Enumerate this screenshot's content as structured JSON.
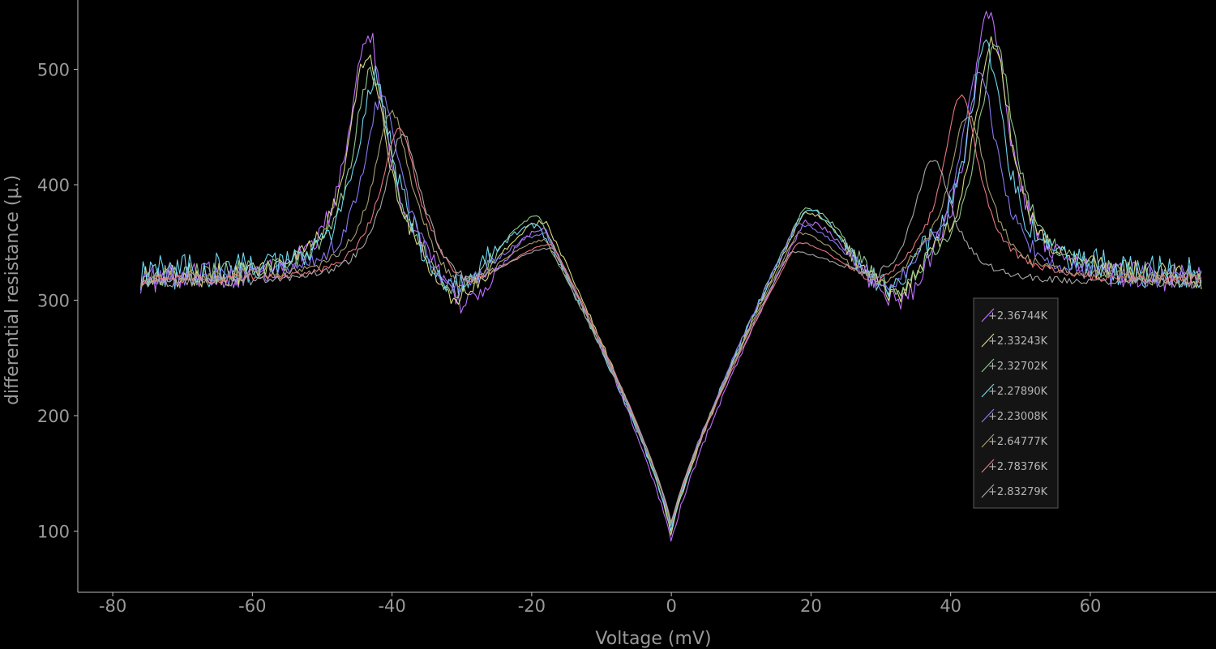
{
  "chart_data": {
    "type": "line",
    "xlabel": "Voltage (mV)",
    "ylabel": "differential resistance (μ.)",
    "xlim": [
      -85,
      78
    ],
    "ylim": [
      47,
      560
    ],
    "x_ticks": [
      -80,
      -60,
      -40,
      -20,
      0,
      20,
      40,
      60
    ],
    "y_ticks": [
      100,
      200,
      300,
      400,
      500
    ],
    "legend_position": "right",
    "x_range": [
      -76,
      76
    ],
    "series": [
      {
        "name": "+2.36744K",
        "color": "#c070ff",
        "baseline": 316,
        "left_peak": [
          -43.5,
          533
        ],
        "left_dip": [
          -31,
          296
        ],
        "left_shoulder": [
          -18,
          362
        ],
        "right_shoulder": [
          19,
          368
        ],
        "right_dip": [
          34,
          298
        ],
        "right_peak": [
          45.5,
          550
        ],
        "min": 89,
        "noise": 9
      },
      {
        "name": "+2.33243K",
        "color": "#d8d880",
        "baseline": 318,
        "left_peak": [
          -43.5,
          516
        ],
        "left_dip": [
          -32,
          302
        ],
        "left_shoulder": [
          -18,
          368
        ],
        "right_shoulder": [
          19,
          376
        ],
        "right_dip": [
          33,
          304
        ],
        "right_peak": [
          46,
          525
        ],
        "min": 96,
        "noise": 8
      },
      {
        "name": "+2.32702K",
        "color": "#90c890",
        "baseline": 320,
        "left_peak": [
          -43,
          498
        ],
        "left_dip": [
          -32,
          306
        ],
        "left_shoulder": [
          -19,
          372
        ],
        "right_shoulder": [
          19,
          380
        ],
        "right_dip": [
          33,
          308
        ],
        "right_peak": [
          46.5,
          520
        ],
        "min": 98,
        "noise": 7
      },
      {
        "name": "+2.27890K",
        "color": "#6fd8f0",
        "baseline": 322,
        "left_peak": [
          -42.5,
          492
        ],
        "left_dip": [
          -33,
          310
        ],
        "left_shoulder": [
          -19,
          365
        ],
        "right_shoulder": [
          19,
          378
        ],
        "right_dip": [
          32,
          312
        ],
        "right_peak": [
          45,
          520
        ],
        "min": 100,
        "noise": 11
      },
      {
        "name": "+2.23008K",
        "color": "#8a7af0",
        "baseline": 317,
        "left_peak": [
          -41.5,
          476
        ],
        "left_dip": [
          -32,
          312
        ],
        "left_shoulder": [
          -18,
          358
        ],
        "right_shoulder": [
          18,
          366
        ],
        "right_dip": [
          32,
          314
        ],
        "right_peak": [
          44,
          500
        ],
        "min": 102,
        "noise": 7
      },
      {
        "name": "+2.64777K",
        "color": "#a8a070",
        "baseline": 318,
        "left_peak": [
          -40,
          462
        ],
        "left_dip": [
          -31,
          314
        ],
        "left_shoulder": [
          -18,
          352
        ],
        "right_shoulder": [
          18,
          358
        ],
        "right_dip": [
          31,
          316
        ],
        "right_peak": [
          42.5,
          462
        ],
        "min": 104,
        "noise": 4
      },
      {
        "name": "+2.78376K",
        "color": "#e87880",
        "baseline": 316,
        "left_peak": [
          -39,
          450
        ],
        "left_dip": [
          -30,
          316
        ],
        "left_shoulder": [
          -17,
          348
        ],
        "right_shoulder": [
          18,
          350
        ],
        "right_dip": [
          30,
          318
        ],
        "right_peak": [
          41.5,
          476
        ],
        "min": 105,
        "noise": 3
      },
      {
        "name": "+2.83279K",
        "color": "#a8a8a8",
        "baseline": 314,
        "left_peak": [
          -38.5,
          444
        ],
        "left_dip": [
          -30,
          318
        ],
        "left_shoulder": [
          -17,
          345
        ],
        "right_shoulder": [
          17,
          342
        ],
        "right_dip": [
          30,
          322
        ],
        "right_peak": [
          37.5,
          422
        ],
        "min": 106,
        "noise": 3
      }
    ]
  }
}
